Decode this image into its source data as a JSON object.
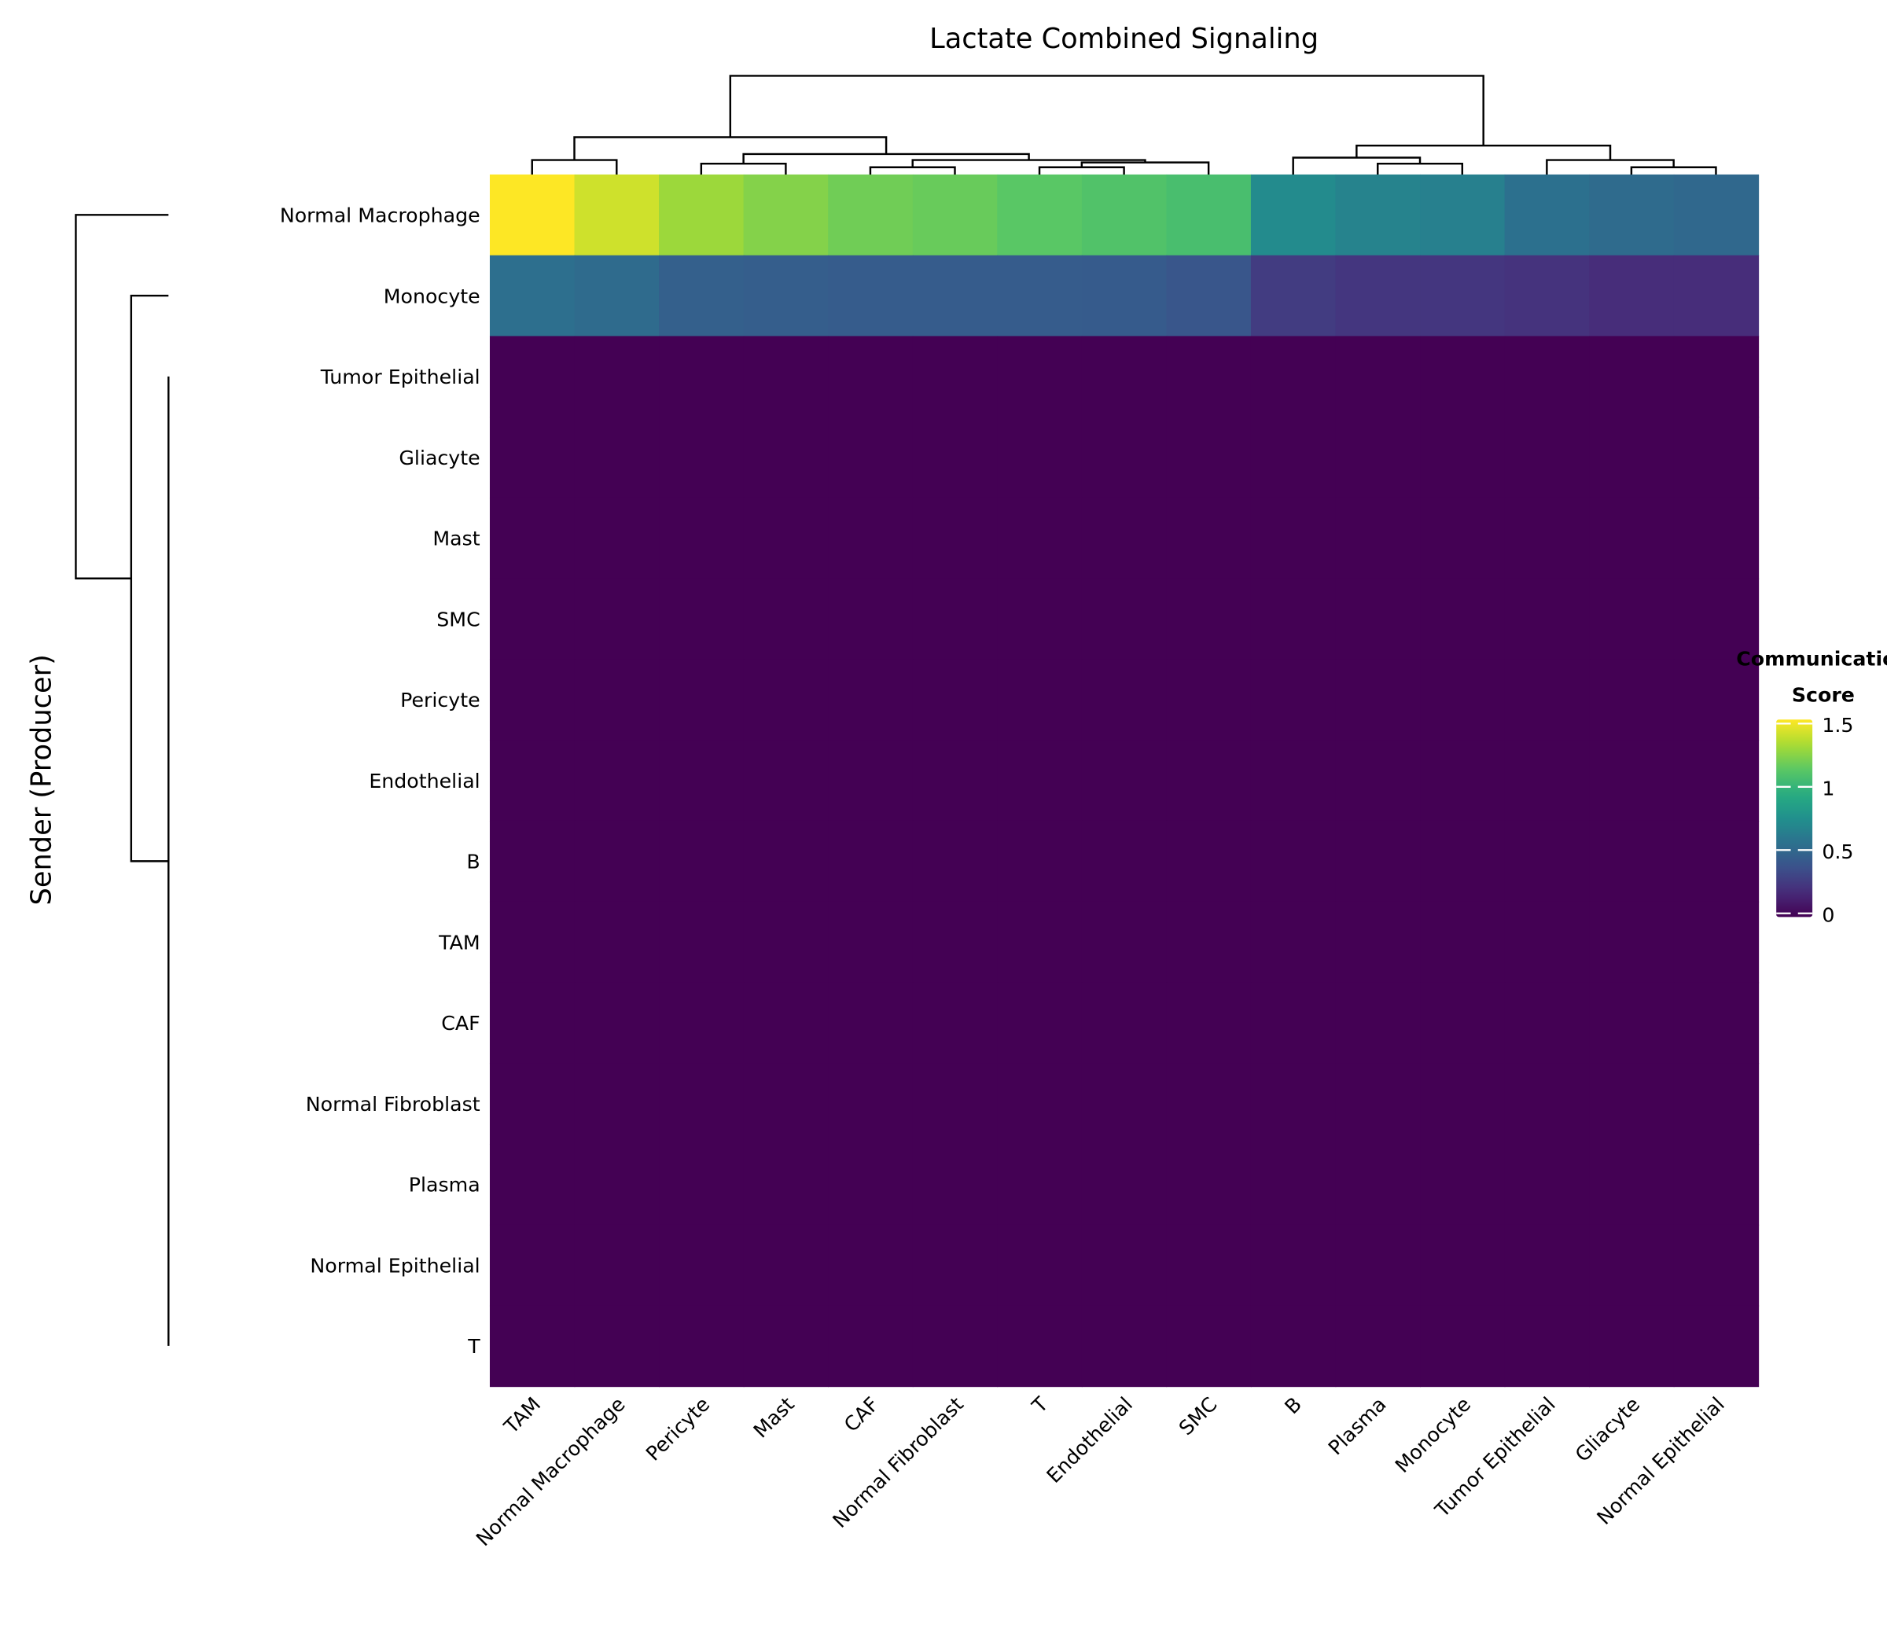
{
  "chart_data": {
    "type": "heatmap",
    "title": "Lactate Combined Signaling",
    "xlabel": "",
    "ylabel": "Sender (Producer)",
    "rows": [
      "Normal Macrophage",
      "Monocyte",
      "Tumor Epithelial",
      "Gliacyte",
      "Mast",
      "SMC",
      "Pericyte",
      "Endothelial",
      "B",
      "TAM",
      "CAF",
      "Normal Fibroblast",
      "Plasma",
      "Normal Epithelial",
      "T"
    ],
    "columns": [
      "TAM",
      "Normal Macrophage",
      "Pericyte",
      "Mast",
      "CAF",
      "Normal Fibroblast",
      "T",
      "Endothelial",
      "SMC",
      "B",
      "Plasma",
      "Monocyte",
      "Tumor Epithelial",
      "Gliacyte",
      "Normal Epithelial"
    ],
    "values": [
      [
        1.57,
        1.45,
        1.33,
        1.27,
        1.22,
        1.2,
        1.16,
        1.13,
        1.1,
        0.75,
        0.7,
        0.68,
        0.58,
        0.55,
        0.53
      ],
      [
        0.57,
        0.55,
        0.48,
        0.47,
        0.46,
        0.46,
        0.46,
        0.45,
        0.42,
        0.28,
        0.25,
        0.25,
        0.23,
        0.2,
        0.2
      ],
      [
        0,
        0,
        0,
        0,
        0,
        0,
        0,
        0,
        0,
        0,
        0,
        0,
        0,
        0,
        0
      ],
      [
        0,
        0,
        0,
        0,
        0,
        0,
        0,
        0,
        0,
        0,
        0,
        0,
        0,
        0,
        0
      ],
      [
        0,
        0,
        0,
        0,
        0,
        0,
        0,
        0,
        0,
        0,
        0,
        0,
        0,
        0,
        0
      ],
      [
        0,
        0,
        0,
        0,
        0,
        0,
        0,
        0,
        0,
        0,
        0,
        0,
        0,
        0,
        0
      ],
      [
        0,
        0,
        0,
        0,
        0,
        0,
        0,
        0,
        0,
        0,
        0,
        0,
        0,
        0,
        0
      ],
      [
        0,
        0,
        0,
        0,
        0,
        0,
        0,
        0,
        0,
        0,
        0,
        0,
        0,
        0,
        0
      ],
      [
        0,
        0,
        0,
        0,
        0,
        0,
        0,
        0,
        0,
        0,
        0,
        0,
        0,
        0,
        0
      ],
      [
        0,
        0,
        0,
        0,
        0,
        0,
        0,
        0,
        0,
        0,
        0,
        0,
        0,
        0,
        0
      ],
      [
        0,
        0,
        0,
        0,
        0,
        0,
        0,
        0,
        0,
        0,
        0,
        0,
        0,
        0,
        0
      ],
      [
        0,
        0,
        0,
        0,
        0,
        0,
        0,
        0,
        0,
        0,
        0,
        0,
        0,
        0,
        0
      ],
      [
        0,
        0,
        0,
        0,
        0,
        0,
        0,
        0,
        0,
        0,
        0,
        0,
        0,
        0,
        0
      ],
      [
        0,
        0,
        0,
        0,
        0,
        0,
        0,
        0,
        0,
        0,
        0,
        0,
        0,
        0,
        0
      ],
      [
        0,
        0,
        0,
        0,
        0,
        0,
        0,
        0,
        0,
        0,
        0,
        0,
        0,
        0,
        0
      ]
    ],
    "colormap": "viridis",
    "color_range": [
      0,
      1.56
    ],
    "colorbar": {
      "title_line1": "Communication",
      "title_line2": "Score",
      "ticks": [
        0,
        0.5,
        1,
        1.5
      ],
      "tick_labels": [
        "0",
        "0.5",
        "1",
        "1.5"
      ]
    },
    "row_dendrogram": true,
    "column_dendrogram": true,
    "grid": false
  }
}
